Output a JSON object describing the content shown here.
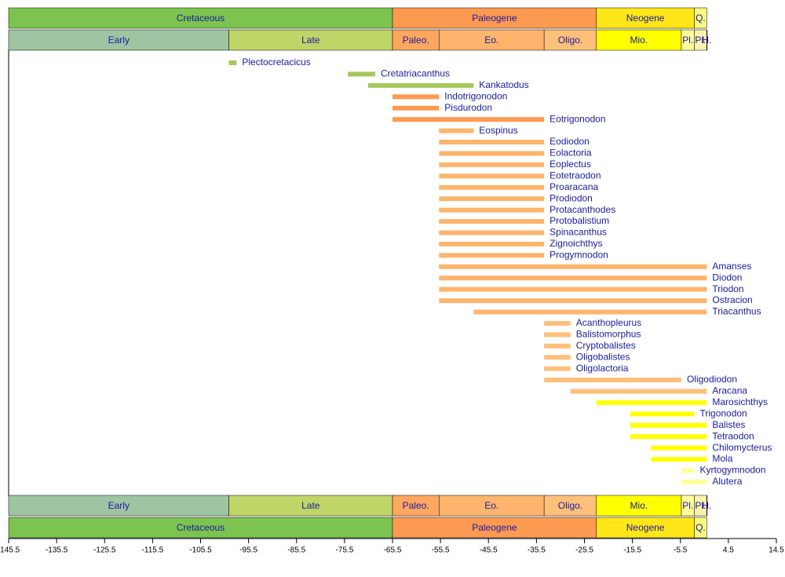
{
  "chart_data": {
    "type": "timeline",
    "xlim": [
      -145.5,
      14.5
    ],
    "xticks": [
      -145.5,
      -135.5,
      -125.5,
      -115.5,
      -105.5,
      -95.5,
      -85.5,
      -75.5,
      -65.5,
      -55.5,
      -45.5,
      -35.5,
      -25.5,
      -15.5,
      -5.5,
      4.5,
      14.5
    ],
    "periods": [
      {
        "name": "Cretaceous",
        "start": -145.5,
        "end": -65.5,
        "color": "#7cc44f"
      },
      {
        "name": "Paleogene",
        "start": -65.5,
        "end": -23,
        "color": "#fd9a52"
      },
      {
        "name": "Neogene",
        "start": -23,
        "end": -2.6,
        "color": "#ffe619"
      },
      {
        "name": "Q.",
        "start": -2.6,
        "end": 0,
        "color": "#f9f97f"
      }
    ],
    "epochs": [
      {
        "name": "Early",
        "start": -145.5,
        "end": -99.6,
        "color": "#9fc4a2"
      },
      {
        "name": "Late",
        "start": -99.6,
        "end": -65.5,
        "color": "#bfd567"
      },
      {
        "name": "Paleo.",
        "start": -65.5,
        "end": -55.8,
        "color": "#fda75f"
      },
      {
        "name": "Eo.",
        "start": -55.8,
        "end": -33.9,
        "color": "#fdb46c"
      },
      {
        "name": "Oligo.",
        "start": -33.9,
        "end": -23,
        "color": "#fdc07a"
      },
      {
        "name": "Mio.",
        "start": -23,
        "end": -5.3,
        "color": "#ffff00"
      },
      {
        "name": "Pl.",
        "start": -5.3,
        "end": -2.6,
        "color": "#ffff99"
      },
      {
        "name": "Pl.",
        "start": -2.6,
        "end": -0.01,
        "color": "#fff2ae"
      },
      {
        "name": "H.",
        "start": -0.01,
        "end": 0,
        "color": "#fef2e0"
      }
    ],
    "taxa": [
      {
        "name": "Plectocretacicus",
        "start": -99.6,
        "end": -98,
        "color": "#a6c85a"
      },
      {
        "name": "Cretatriacanthus",
        "start": -74.8,
        "end": -69.1,
        "color": "#a6c85a"
      },
      {
        "name": "Kankatodus",
        "start": -70.6,
        "end": -48.6,
        "color": "#a6c85a"
      },
      {
        "name": "Indotrigonodon",
        "start": -65.5,
        "end": -55.8,
        "color": "#fd9a52"
      },
      {
        "name": "Pisdurodon",
        "start": -65.5,
        "end": -55.8,
        "color": "#fd9a52"
      },
      {
        "name": "Eotrigonodon",
        "start": -65.5,
        "end": -33.9,
        "color": "#fd9a52"
      },
      {
        "name": "Eospinus",
        "start": -55.8,
        "end": -48.6,
        "color": "#fdb46c"
      },
      {
        "name": "Eodiodon",
        "start": -55.8,
        "end": -33.9,
        "color": "#fdb46c"
      },
      {
        "name": "Eolactoria",
        "start": -55.8,
        "end": -33.9,
        "color": "#fdb46c"
      },
      {
        "name": "Eoplectus",
        "start": -55.8,
        "end": -33.9,
        "color": "#fdb46c"
      },
      {
        "name": "Eotetraodon",
        "start": -55.8,
        "end": -33.9,
        "color": "#fdb46c"
      },
      {
        "name": "Proaracana",
        "start": -55.8,
        "end": -33.9,
        "color": "#fdb46c"
      },
      {
        "name": "Prodiodon",
        "start": -55.8,
        "end": -33.9,
        "color": "#fdb46c"
      },
      {
        "name": "Protacanthodes",
        "start": -55.8,
        "end": -33.9,
        "color": "#fdb46c"
      },
      {
        "name": "Protobalistium",
        "start": -55.8,
        "end": -33.9,
        "color": "#fdb46c"
      },
      {
        "name": "Spinacanthus",
        "start": -55.8,
        "end": -33.9,
        "color": "#fdb46c"
      },
      {
        "name": "Zignoichthys",
        "start": -55.8,
        "end": -33.9,
        "color": "#fdb46c"
      },
      {
        "name": "Progymnodon",
        "start": -55.8,
        "end": -33.9,
        "color": "#fdb46c"
      },
      {
        "name": "Amanses",
        "start": -55.8,
        "end": 0,
        "color": "#fdb46c"
      },
      {
        "name": "Diodon",
        "start": -55.8,
        "end": 0,
        "color": "#fdb46c"
      },
      {
        "name": "Triodon",
        "start": -55.8,
        "end": 0,
        "color": "#fdb46c"
      },
      {
        "name": "Ostracion",
        "start": -55.8,
        "end": 0,
        "color": "#fdb46c"
      },
      {
        "name": "Triacanthus",
        "start": -48.6,
        "end": 0,
        "color": "#fdb46c"
      },
      {
        "name": "Acanthopleurus",
        "start": -33.9,
        "end": -28.4,
        "color": "#fdc07a"
      },
      {
        "name": "Balistomorphus",
        "start": -33.9,
        "end": -28.4,
        "color": "#fdc07a"
      },
      {
        "name": "Cryptobalistes",
        "start": -33.9,
        "end": -28.4,
        "color": "#fdc07a"
      },
      {
        "name": "Oligobalistes",
        "start": -33.9,
        "end": -28.4,
        "color": "#fdc07a"
      },
      {
        "name": "Oligolactoria",
        "start": -33.9,
        "end": -28.4,
        "color": "#fdc07a"
      },
      {
        "name": "Oligodiodon",
        "start": -33.9,
        "end": -5.3,
        "color": "#fdc07a"
      },
      {
        "name": "Aracana",
        "start": -28.4,
        "end": 0,
        "color": "#fdc07a"
      },
      {
        "name": "Marosichthys",
        "start": -23,
        "end": 0,
        "color": "#ffff00"
      },
      {
        "name": "Trigonodon",
        "start": -16,
        "end": -2.6,
        "color": "#ffff00"
      },
      {
        "name": "Balistes",
        "start": -16,
        "end": 0,
        "color": "#ffff00"
      },
      {
        "name": "Tetraodon",
        "start": -16,
        "end": 0,
        "color": "#ffff00"
      },
      {
        "name": "Chilomycterus",
        "start": -11.6,
        "end": 0,
        "color": "#ffff00"
      },
      {
        "name": "Mola",
        "start": -11.6,
        "end": 0,
        "color": "#ffff00"
      },
      {
        "name": "Kyrtogymnodon",
        "start": -5.3,
        "end": -2.6,
        "color": "#ffff99"
      },
      {
        "name": "Alutera",
        "start": -5.3,
        "end": 0,
        "color": "#ffff99"
      }
    ]
  }
}
